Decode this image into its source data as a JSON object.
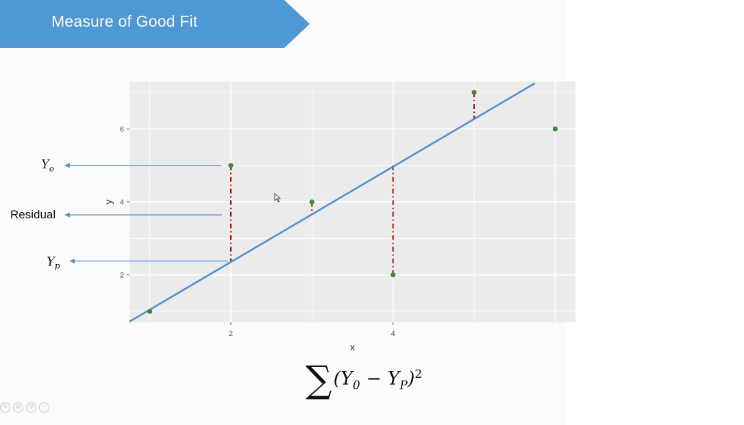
{
  "slide": {
    "title": "Measure of Good Fit",
    "banner_color": "#4F98D6"
  },
  "annotations": {
    "y_observed": {
      "symbol": "Y",
      "subscript": "o"
    },
    "residual": "Residual",
    "y_predicted": {
      "symbol": "Y",
      "subscript": "p"
    },
    "arrow_color": "#4F8FCB"
  },
  "formula": {
    "sigma": "∑",
    "expression_start": "(Y",
    "sub_0": "0",
    "minus": " − Y",
    "sub_p": "P",
    "close": ")",
    "power": "2"
  },
  "toolbar": {
    "icons": [
      "edit-icon",
      "copy-icon",
      "zoom-icon",
      "minus-icon"
    ]
  },
  "chart_data": {
    "type": "scatter",
    "title": "",
    "xlabel": "x",
    "ylabel": "y",
    "xlim": [
      0.75,
      6.25
    ],
    "ylim": [
      0.7,
      7.3
    ],
    "x_ticks": [
      2,
      4
    ],
    "y_ticks": [
      2,
      4,
      6
    ],
    "grid": true,
    "panel_color": "#EBEBEB",
    "point_color": "#3A8A3A",
    "fit_line_color": "#4E90CF",
    "residual_color": "#C00000",
    "points": [
      {
        "x": 1,
        "y": 1
      },
      {
        "x": 2,
        "y": 5
      },
      {
        "x": 3,
        "y": 4
      },
      {
        "x": 4,
        "y": 2
      },
      {
        "x": 5,
        "y": 7
      },
      {
        "x": 6,
        "y": 6
      }
    ],
    "fit_line": {
      "x": [
        0.75,
        5.75
      ],
      "y": [
        0.72,
        7.25
      ]
    },
    "residuals": [
      {
        "x": 2,
        "y_observed": 5,
        "y_predicted": 2.38
      },
      {
        "x": 3,
        "y_observed": 4,
        "y_predicted": 3.65
      },
      {
        "x": 4,
        "y_observed": 2,
        "y_predicted": 5.0
      },
      {
        "x": 5,
        "y_observed": 7,
        "y_predicted": 6.28
      }
    ]
  }
}
